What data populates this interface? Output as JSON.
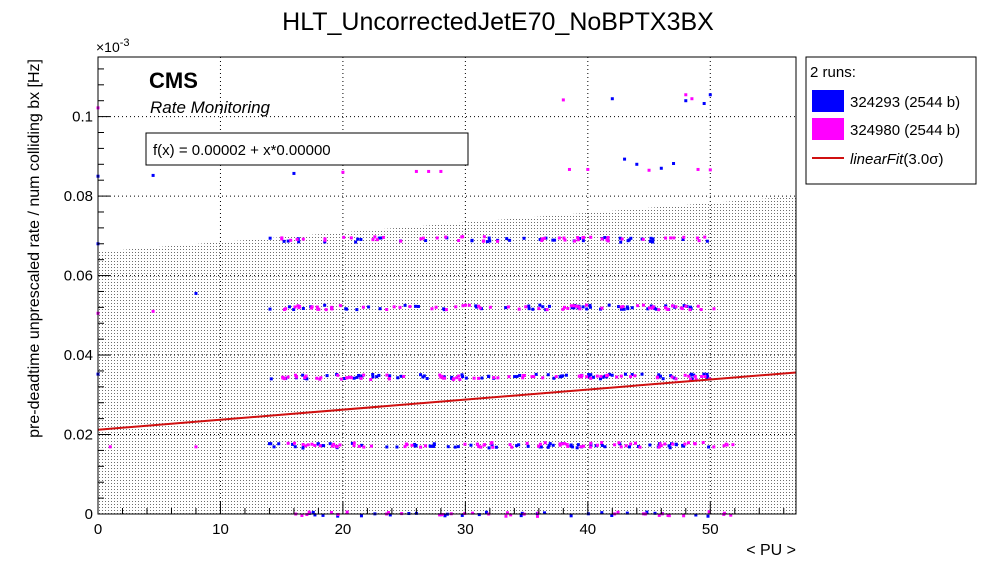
{
  "chart_data": {
    "type": "scatter",
    "title": "HLT_UncorrectedJetE70_NoBPTX3BX",
    "xlabel": "< PU >",
    "ylabel": "pre-deadtime unprescaled rate / num colliding bx [Hz]",
    "y_exponent": "×10^{-3}",
    "y_exponent_base": "×10",
    "y_exponent_power": "-3",
    "xlim": [
      0,
      57
    ],
    "ylim": [
      0,
      0.115
    ],
    "x_ticks": [
      "0",
      "10",
      "20",
      "30",
      "40",
      "50"
    ],
    "y_ticks": [
      "0",
      "0.02",
      "0.04",
      "0.06",
      "0.08",
      "0.1"
    ],
    "grid": true,
    "legend_position": "outside-right",
    "cms_label": "CMS",
    "cms_sublabel": "Rate Monitoring",
    "fit_formula": "f(x) = 0.00002 + x*0.00000",
    "fit": {
      "intercept": 0.0212,
      "slope": 0.000253,
      "x_range": [
        0,
        57
      ],
      "color": "#d01010"
    },
    "band": {
      "lower": [
        [
          0,
          0
        ],
        [
          57,
          0
        ]
      ],
      "upper": [
        [
          0,
          0.066
        ],
        [
          57,
          0.08
        ]
      ],
      "color": "#999999"
    },
    "legend": {
      "title": "2 runs:",
      "entries": [
        {
          "label": "324293 (2544 b)",
          "color": "#0000ff",
          "kind": "box"
        },
        {
          "label": "324980 (2544 b)",
          "color": "#ff00ff",
          "kind": "box"
        },
        {
          "label_fit": "linearFit",
          "label_sigma": "(3.0σ)",
          "color": "#d01010",
          "kind": "line"
        }
      ]
    },
    "series": [
      {
        "name": "324293 (2544 b)",
        "color": "#0000ff",
        "clusters": [
          {
            "y": 0.0172,
            "x": [
              14,
              50
            ],
            "n": 70
          },
          {
            "y": 0.0346,
            "x": [
              14,
              50
            ],
            "n": 75
          },
          {
            "y": 0.052,
            "x": [
              14,
              50
            ],
            "n": 60
          },
          {
            "y": 0.069,
            "x": [
              14,
              50
            ],
            "n": 45
          },
          {
            "y": 0.0,
            "x": [
              14,
              50
            ],
            "n": 30
          }
        ],
        "points": [
          [
            0,
            0.085
          ],
          [
            0,
            0.068
          ],
          [
            0,
            0.0352
          ],
          [
            4.5,
            0.0852
          ],
          [
            8,
            0.0555
          ],
          [
            16,
            0.0857
          ],
          [
            42,
            0.1045
          ],
          [
            43,
            0.0893
          ],
          [
            44,
            0.088
          ],
          [
            46,
            0.087
          ],
          [
            47,
            0.0882
          ],
          [
            48,
            0.104
          ],
          [
            50,
            0.1055
          ],
          [
            49.5,
            0.1033
          ]
        ]
      },
      {
        "name": "324980 (2544 b)",
        "color": "#ff00ff",
        "clusters": [
          {
            "y": 0.0174,
            "x": [
              15,
              52
            ],
            "n": 75
          },
          {
            "y": 0.0344,
            "x": [
              15,
              51
            ],
            "n": 75
          },
          {
            "y": 0.052,
            "x": [
              15,
              51
            ],
            "n": 65
          },
          {
            "y": 0.0692,
            "x": [
              15,
              51
            ],
            "n": 50
          },
          {
            "y": 0.0,
            "x": [
              15,
              52
            ],
            "n": 35
          }
        ],
        "points": [
          [
            0,
            0.1022
          ],
          [
            0,
            0.0505
          ],
          [
            1,
            0.0169
          ],
          [
            4.5,
            0.051
          ],
          [
            8,
            0.0169
          ],
          [
            20,
            0.086
          ],
          [
            26,
            0.0862
          ],
          [
            27,
            0.0862
          ],
          [
            28,
            0.0862
          ],
          [
            38,
            0.1042
          ],
          [
            38.5,
            0.0867
          ],
          [
            40,
            0.0867
          ],
          [
            48,
            0.1055
          ],
          [
            48.5,
            0.1045
          ],
          [
            45,
            0.0865
          ],
          [
            49,
            0.0867
          ],
          [
            50,
            0.0866
          ]
        ]
      }
    ]
  }
}
